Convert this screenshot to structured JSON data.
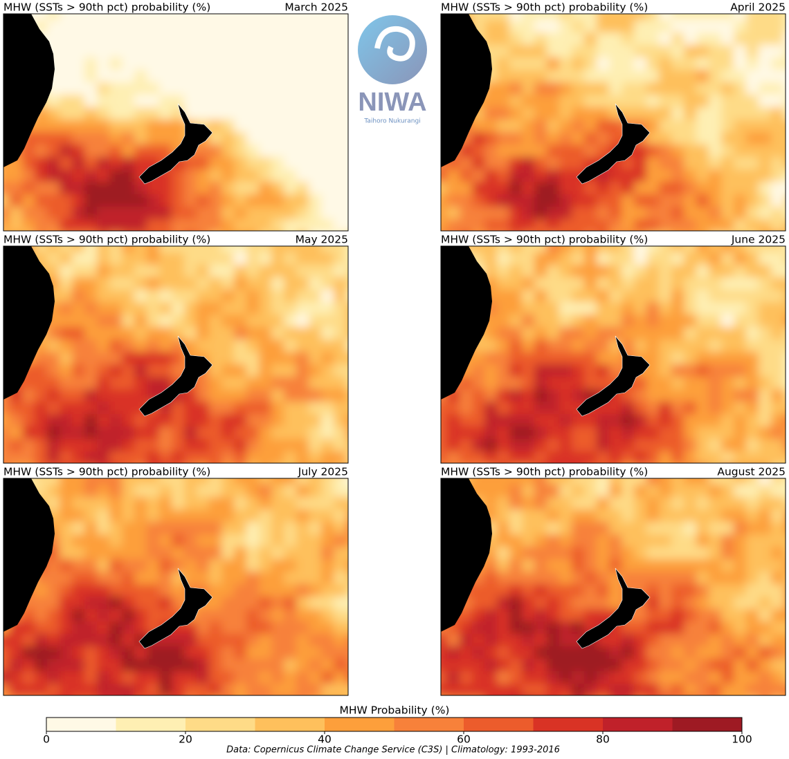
{
  "panels": [
    {
      "title": "MHW (SSTs > 90th pct) probability (%)",
      "date": "March 2025"
    },
    {
      "title": "MHW (SSTs > 90th pct) probability (%)",
      "date": "April 2025"
    },
    {
      "title": "MHW (SSTs > 90th pct) probability (%)",
      "date": "May 2025"
    },
    {
      "title": "MHW (SSTs > 90th pct) probability (%)",
      "date": "June 2025"
    },
    {
      "title": "MHW (SSTs > 90th pct) probability (%)",
      "date": "July 2025"
    },
    {
      "title": "MHW (SSTs > 90th pct) probability (%)",
      "date": "August 2025"
    }
  ],
  "logo": {
    "name": "NIWA",
    "subtitle": "Taihoro Nukurangi"
  },
  "chart_data": {
    "type": "colorbar",
    "title": "MHW Probability (%)",
    "bins": [
      0,
      10,
      20,
      30,
      40,
      50,
      60,
      70,
      80,
      90,
      100
    ],
    "colors": [
      "#fff9e6",
      "#feefb3",
      "#fedb87",
      "#fec05c",
      "#fd9f3b",
      "#f7813a",
      "#ec5c2c",
      "#d93325",
      "#c0212a",
      "#9e1a23"
    ],
    "xlim": [
      0,
      100
    ],
    "xticks": [
      0,
      20,
      40,
      60,
      80,
      100
    ]
  },
  "footer": "Data: Copernicus Climate Change Service (C3S) | Climatology: 1993-2016"
}
